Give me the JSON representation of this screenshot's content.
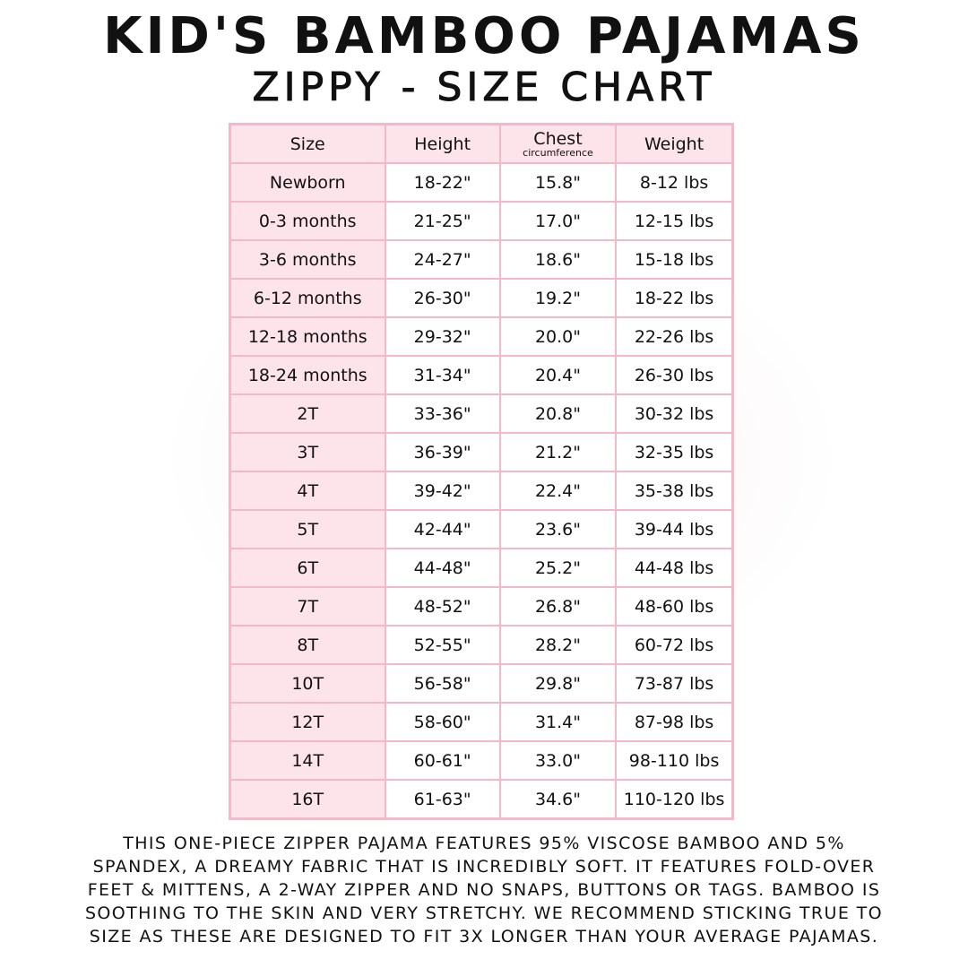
{
  "header": {
    "title": "Kid's Bamboo Pajamas",
    "subtitle": "Zippy - Size Chart"
  },
  "table": {
    "columns": [
      "Size",
      "Height",
      "Chest",
      "Weight"
    ],
    "chest_sublabel": "circumference",
    "rows": [
      [
        "Newborn",
        "18-22\"",
        "15.8\"",
        "8-12 lbs"
      ],
      [
        "0-3 months",
        "21-25\"",
        "17.0\"",
        "12-15 lbs"
      ],
      [
        "3-6 months",
        "24-27\"",
        "18.6\"",
        "15-18 lbs"
      ],
      [
        "6-12 months",
        "26-30\"",
        "19.2\"",
        "18-22 lbs"
      ],
      [
        "12-18 months",
        "29-32\"",
        "20.0\"",
        "22-26 lbs"
      ],
      [
        "18-24 months",
        "31-34\"",
        "20.4\"",
        "26-30 lbs"
      ],
      [
        "2T",
        "33-36\"",
        "20.8\"",
        "30-32 lbs"
      ],
      [
        "3T",
        "36-39\"",
        "21.2\"",
        "32-35 lbs"
      ],
      [
        "4T",
        "39-42\"",
        "22.4\"",
        "35-38 lbs"
      ],
      [
        "5T",
        "42-44\"",
        "23.6\"",
        "39-44 lbs"
      ],
      [
        "6T",
        "44-48\"",
        "25.2\"",
        "44-48 lbs"
      ],
      [
        "7T",
        "48-52\"",
        "26.8\"",
        "48-60 lbs"
      ],
      [
        "8T",
        "52-55\"",
        "28.2\"",
        "60-72 lbs"
      ],
      [
        "10T",
        "56-58\"",
        "29.8\"",
        "73-87 lbs"
      ],
      [
        "12T",
        "58-60\"",
        "31.4\"",
        "87-98 lbs"
      ],
      [
        "14T",
        "60-61\"",
        "33.0\"",
        "98-110 lbs"
      ],
      [
        "16T",
        "61-63\"",
        "34.6\"",
        "110-120 lbs"
      ]
    ]
  },
  "description": {
    "lines": [
      "This one-piece zipper pajama features 95% viscose bamboo and 5%",
      "spandex, a dreamy fabric that is incredibly soft. It features fold-over",
      "feet & mittens, a 2-way zipper and no snaps, buttons or tags. Bamboo is",
      "soothing to the skin and very stretchy. We recommend sticking true to",
      "size as these are designed to fit 3x longer than your average pajamas."
    ]
  },
  "colors": {
    "border_pink": "#f4b8c9",
    "fill_pink": "#fde3ea",
    "text": "#111111"
  }
}
